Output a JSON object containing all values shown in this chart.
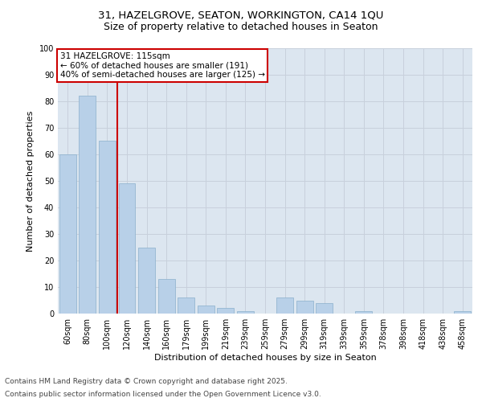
{
  "title1": "31, HAZELGROVE, SEATON, WORKINGTON, CA14 1QU",
  "title2": "Size of property relative to detached houses in Seaton",
  "xlabel": "Distribution of detached houses by size in Seaton",
  "ylabel": "Number of detached properties",
  "categories": [
    "60sqm",
    "80sqm",
    "100sqm",
    "120sqm",
    "140sqm",
    "160sqm",
    "179sqm",
    "199sqm",
    "219sqm",
    "239sqm",
    "259sqm",
    "279sqm",
    "299sqm",
    "319sqm",
    "339sqm",
    "359sqm",
    "378sqm",
    "398sqm",
    "418sqm",
    "438sqm",
    "458sqm"
  ],
  "values": [
    60,
    82,
    65,
    49,
    25,
    13,
    6,
    3,
    2,
    1,
    0,
    6,
    5,
    4,
    0,
    1,
    0,
    0,
    0,
    0,
    1
  ],
  "bar_color": "#b8d0e8",
  "bar_edge_color": "#8ab0cc",
  "vline_x": 2.5,
  "vline_color": "#cc0000",
  "annotation_text": "31 HAZELGROVE: 115sqm\n← 60% of detached houses are smaller (191)\n40% of semi-detached houses are larger (125) →",
  "annotation_box_color": "#cc0000",
  "ylim": [
    0,
    100
  ],
  "yticks": [
    0,
    10,
    20,
    30,
    40,
    50,
    60,
    70,
    80,
    90,
    100
  ],
  "grid_color": "#c8d0dc",
  "background_color": "#dce6f0",
  "footer1": "Contains HM Land Registry data © Crown copyright and database right 2025.",
  "footer2": "Contains public sector information licensed under the Open Government Licence v3.0.",
  "title_fontsize": 9.5,
  "subtitle_fontsize": 9,
  "axis_label_fontsize": 8,
  "tick_fontsize": 7,
  "footer_fontsize": 6.5,
  "annotation_fontsize": 7.5
}
